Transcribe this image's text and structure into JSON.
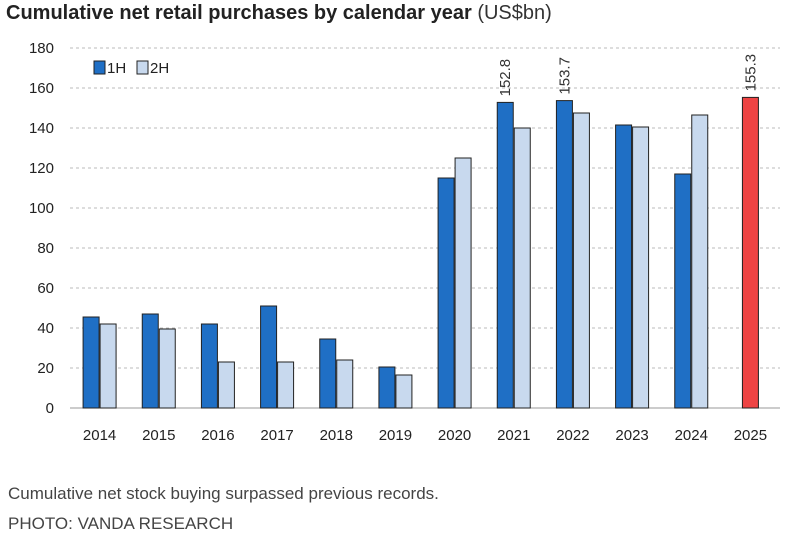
{
  "title": {
    "main": "Cumulative net retail purchases by calendar year",
    "unit": "(US$bn)"
  },
  "caption": "Cumulative net stock buying surpassed previous records.",
  "credit": "PHOTO: VANDA RESEARCH",
  "colors": {
    "h1": "#1f6fc5",
    "h2": "#c8d9ee",
    "highlight": "#ee4444",
    "grid": "#bbbbbb",
    "outline": "#222222"
  },
  "chart_data": {
    "type": "bar",
    "title": "Cumulative net retail purchases by calendar year",
    "ylabel": "",
    "xlabel": "",
    "ylim": [
      0,
      180
    ],
    "yticks": [
      0,
      20,
      40,
      60,
      80,
      100,
      120,
      140,
      160,
      180
    ],
    "grid": "horizontal dashed",
    "legend_position": "top-left",
    "categories": [
      "2014",
      "2015",
      "2016",
      "2017",
      "2018",
      "2019",
      "2020",
      "2021",
      "2022",
      "2023",
      "2024",
      "2025"
    ],
    "series": [
      {
        "name": "1H",
        "values": [
          45.5,
          47,
          42,
          51,
          34.5,
          20.5,
          115,
          152.8,
          153.7,
          141.5,
          117,
          155.3
        ]
      },
      {
        "name": "2H",
        "values": [
          42,
          39.5,
          23,
          23,
          24,
          16.5,
          125,
          140,
          147.5,
          140.5,
          146.5,
          null
        ]
      }
    ],
    "data_labels": [
      {
        "category": "2021",
        "series": "1H",
        "text": "152.8"
      },
      {
        "category": "2022",
        "series": "1H",
        "text": "153.7"
      },
      {
        "category": "2025",
        "series": "1H",
        "text": "155.3"
      }
    ],
    "highlight": {
      "category": "2025",
      "series": "1H"
    }
  }
}
